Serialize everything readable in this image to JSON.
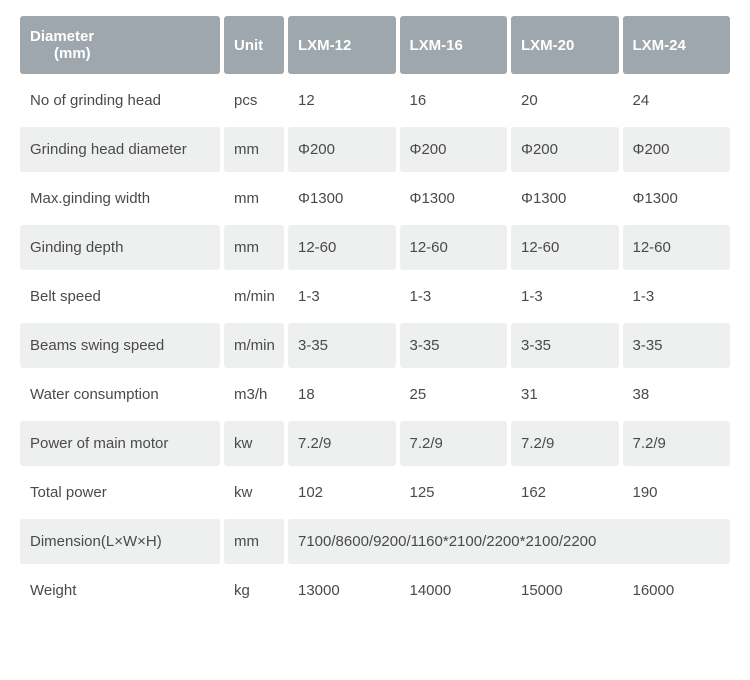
{
  "colors": {
    "header_bg": "#9ea7ad",
    "header_text": "#ffffff",
    "row_shaded_bg": "#eeefef",
    "row_plain_bg": "#ffffff",
    "body_text": "#4a4a4a"
  },
  "header": {
    "param_line1": "Diameter",
    "param_line2": "(mm)",
    "unit": "Unit",
    "models": [
      "LXM-12",
      "LXM-16",
      "LXM-20",
      "LXM-24"
    ]
  },
  "rows": [
    {
      "param": "No of grinding head",
      "unit": "pcs",
      "vals": [
        "12",
        "16",
        "20",
        "24"
      ],
      "shaded": false
    },
    {
      "param": "Grinding head diameter",
      "unit": "mm",
      "vals": [
        "Φ200",
        "Φ200",
        "Φ200",
        "Φ200"
      ],
      "shaded": true
    },
    {
      "param": "Max.ginding width",
      "unit": "mm",
      "vals": [
        "Φ1300",
        "Φ1300",
        "Φ1300",
        "Φ1300"
      ],
      "shaded": false
    },
    {
      "param": "Ginding depth",
      "unit": "mm",
      "vals": [
        "12-60",
        "12-60",
        "12-60",
        "12-60"
      ],
      "shaded": true
    },
    {
      "param": "Belt speed",
      "unit": "m/min",
      "vals": [
        "1-3",
        "1-3",
        "1-3",
        "1-3"
      ],
      "shaded": false
    },
    {
      "param": "Beams swing speed",
      "unit": "m/min",
      "vals": [
        "3-35",
        "3-35",
        "3-35",
        "3-35"
      ],
      "shaded": true
    },
    {
      "param": "Water consumption",
      "unit": "m3/h",
      "vals": [
        "18",
        "25",
        "31",
        "38"
      ],
      "shaded": false
    },
    {
      "param": "Power of main motor",
      "unit": "kw",
      "vals": [
        "7.2/9",
        "7.2/9",
        "7.2/9",
        "7.2/9"
      ],
      "shaded": true
    },
    {
      "param": "Total power",
      "unit": "kw",
      "vals": [
        "102",
        "125",
        "162",
        "190"
      ],
      "shaded": false
    },
    {
      "param": "Dimension(L×W×H)",
      "unit": "mm",
      "merged": "7100/8600/9200/1160*2100/2200*2100/2200",
      "shaded": true
    },
    {
      "param": "Weight",
      "unit": "kg",
      "vals": [
        "13000",
        "14000",
        "15000",
        "16000"
      ],
      "shaded": false
    }
  ]
}
